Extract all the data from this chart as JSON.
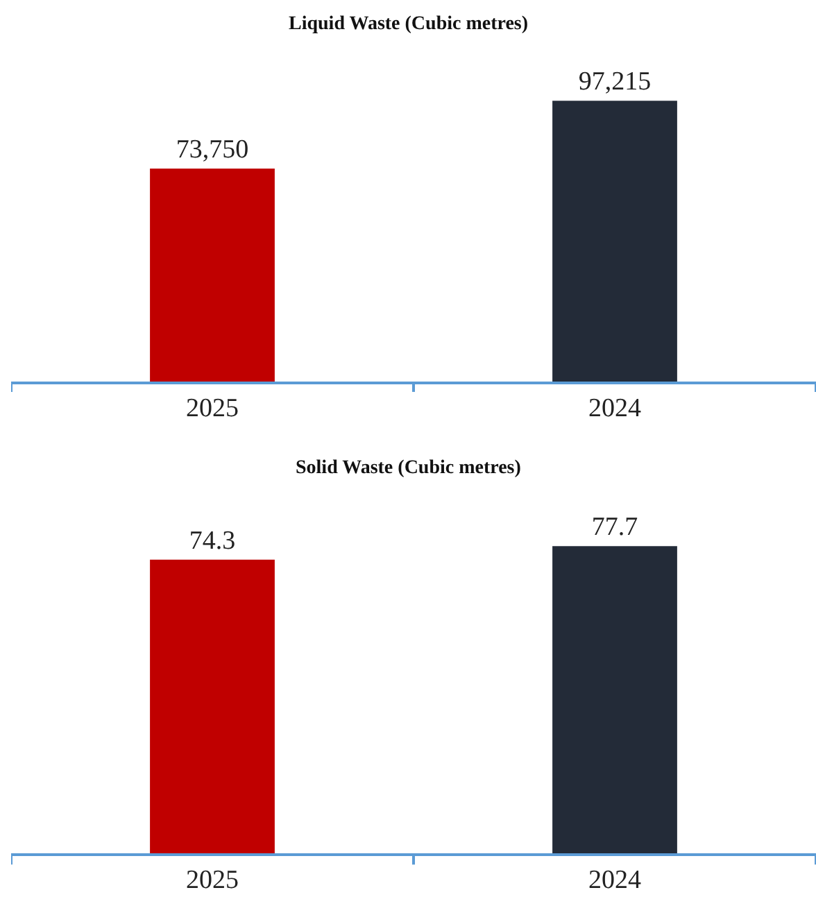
{
  "chart_data": [
    {
      "type": "bar",
      "title": "Liquid Waste (Cubic metres)",
      "categories": [
        "2025",
        "2024"
      ],
      "values": [
        73750,
        97215
      ],
      "colors": [
        "#c00000",
        "#232b38"
      ],
      "data_labels": true,
      "value_labels": [
        "73,750",
        "97,215"
      ]
    },
    {
      "type": "bar",
      "title": "Solid Waste (Cubic metres)",
      "categories": [
        "2025",
        "2024"
      ],
      "values": [
        74.3,
        77.7
      ],
      "colors": [
        "#c00000",
        "#232b38"
      ],
      "data_labels": true
    }
  ]
}
